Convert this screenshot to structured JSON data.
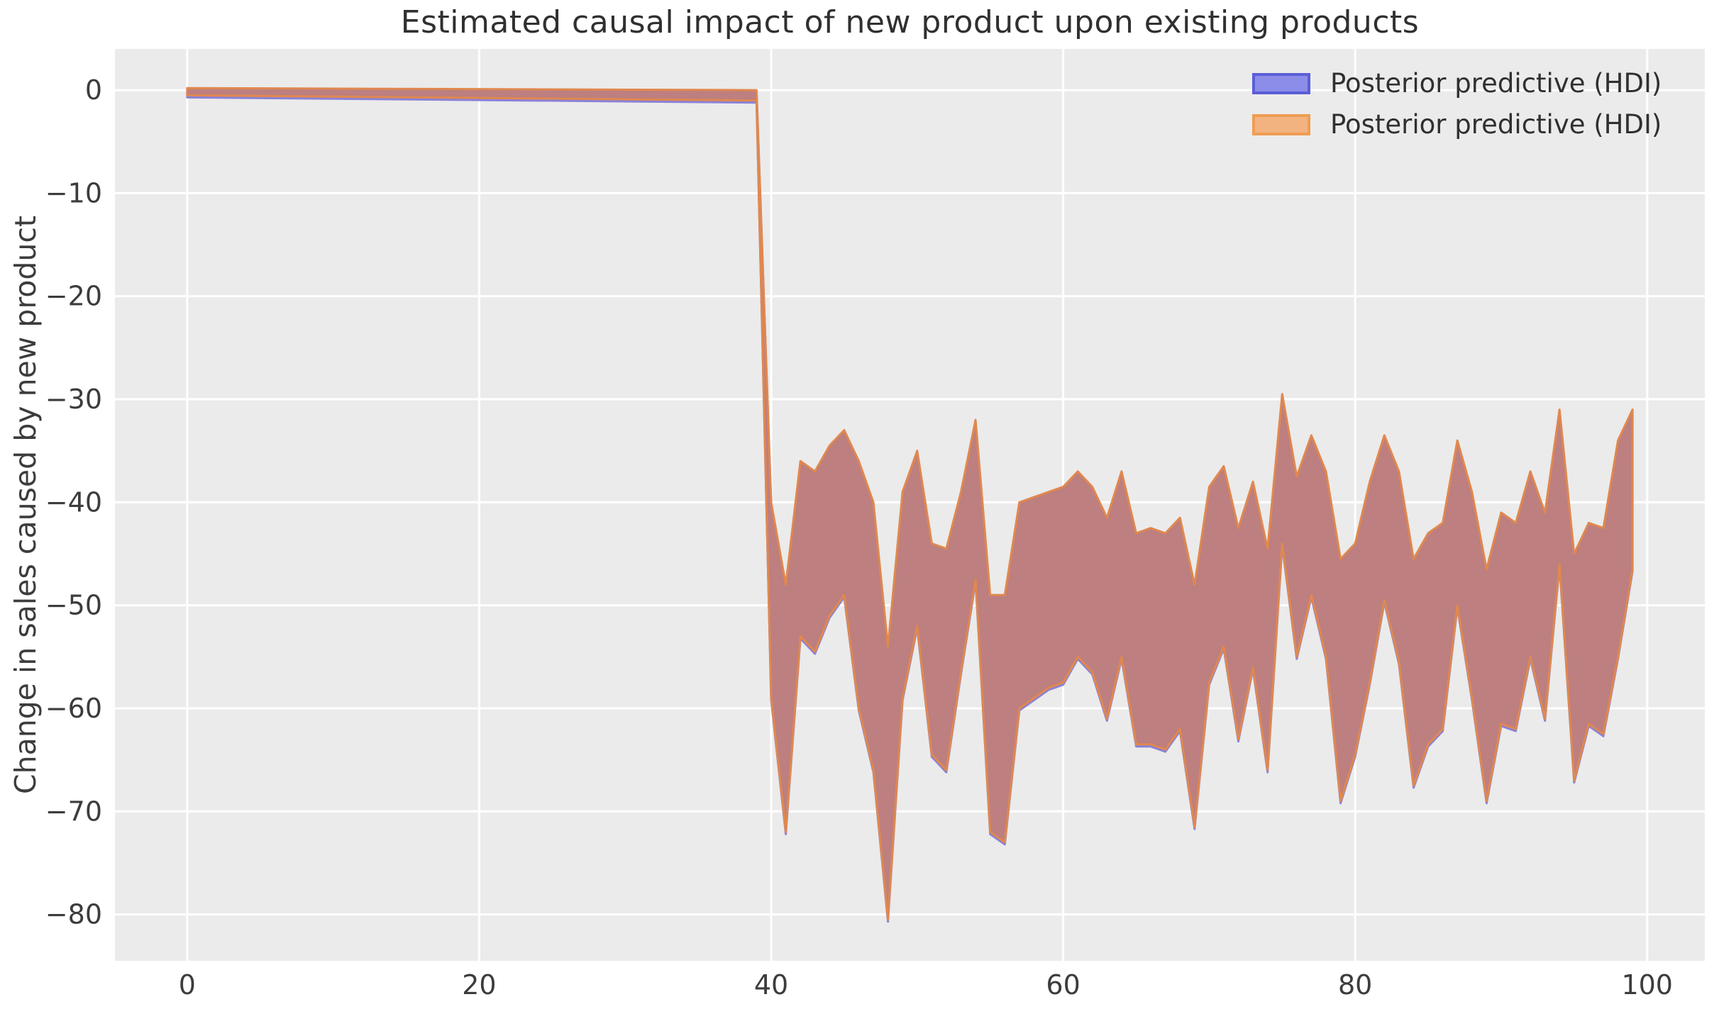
{
  "figure": {
    "title": "Estimated causal impact of new product upon existing products",
    "ylabel": "Change in sales caused by new product",
    "xlabel": ""
  },
  "legend": {
    "position": "upper right",
    "items": [
      {
        "label": "Posterior predictive (HDI)",
        "fill": "#8b8de9",
        "border": "#5b5ed6"
      },
      {
        "label": "Posterior predictive (HDI)",
        "fill": "#f3b381",
        "border": "#ef9d52"
      }
    ]
  },
  "colors": {
    "page_bg": "#ffffff",
    "plot_bg": "#ebebeb",
    "grid": "#ffffff",
    "band_fill": "#bd7f7f",
    "band_edge_orange": "#e0884f",
    "band_edge_blue": "#8a82d8",
    "title_text": "#303030",
    "tick_text": "#3c3c3c"
  },
  "chart_data": {
    "type": "area",
    "title": "Estimated causal impact of new product upon existing products",
    "xlabel": "",
    "ylabel": "Change in sales caused by new product",
    "x_ticks": [
      0,
      20,
      40,
      60,
      80,
      100
    ],
    "y_ticks": [
      0,
      -10,
      -20,
      -30,
      -40,
      -50,
      -60,
      -70,
      -80
    ],
    "xlim": [
      -4.95,
      103.95
    ],
    "ylim": [
      -84.5,
      4.0
    ],
    "grid": true,
    "legend_position": "upper right",
    "series_note": "Two overlapping HDI bands (blue and orange) share virtually identical envelopes; overlap renders red-brown.",
    "series": [
      {
        "name": "Posterior predictive (HDI)",
        "color": "#8b8de9"
      },
      {
        "name": "Posterior predictive (HDI)",
        "color": "#f3b381"
      }
    ],
    "band": {
      "pre_period": {
        "x": [
          0,
          39
        ],
        "upper": [
          0.2,
          0
        ],
        "lower": [
          -0.5,
          -1
        ]
      },
      "post_x_start": 40,
      "post_x_end": 99,
      "upper": [
        -40,
        -48,
        -36,
        -37,
        -34.5,
        -33,
        -36,
        -40,
        -54,
        -39,
        -35,
        -44,
        -44.5,
        -39,
        -32,
        -49,
        -49,
        -40,
        -39.5,
        -39,
        -38.5,
        -37,
        -38.5,
        -41.5,
        -37,
        -43,
        -42.5,
        -43,
        -41.5,
        -48,
        -38.5,
        -36.5,
        -42.5,
        -38,
        -44.5,
        -29.5,
        -37.5,
        -33.5,
        -37,
        -45.5,
        -44,
        -38,
        -33.5,
        -37,
        -45.5,
        -43,
        -42,
        -34,
        -39,
        -46.5,
        -41,
        -42,
        -37,
        -41,
        -31,
        -45,
        -42,
        -42.5,
        -34,
        -31
      ],
      "lower": [
        -59,
        -72,
        -53,
        -54.5,
        -51,
        -49,
        -60,
        -66,
        -80.5,
        -59,
        -52,
        -64.5,
        -66,
        -56.5,
        -47.5,
        -72,
        -73,
        -60,
        -59,
        -58,
        -57.5,
        -55,
        -56.5,
        -61,
        -55,
        -63.5,
        -63.5,
        -64,
        -62,
        -71.5,
        -57.5,
        -54,
        -63,
        -56,
        -66,
        -44,
        -55,
        -49,
        -55,
        -69,
        -64.5,
        -57.5,
        -49.5,
        -55.5,
        -67.5,
        -63.5,
        -62,
        -50,
        -59,
        -69,
        -61.5,
        -62,
        -55,
        -61,
        -46,
        -67,
        -61.5,
        -62.5,
        -55,
        -46.5
      ]
    }
  }
}
